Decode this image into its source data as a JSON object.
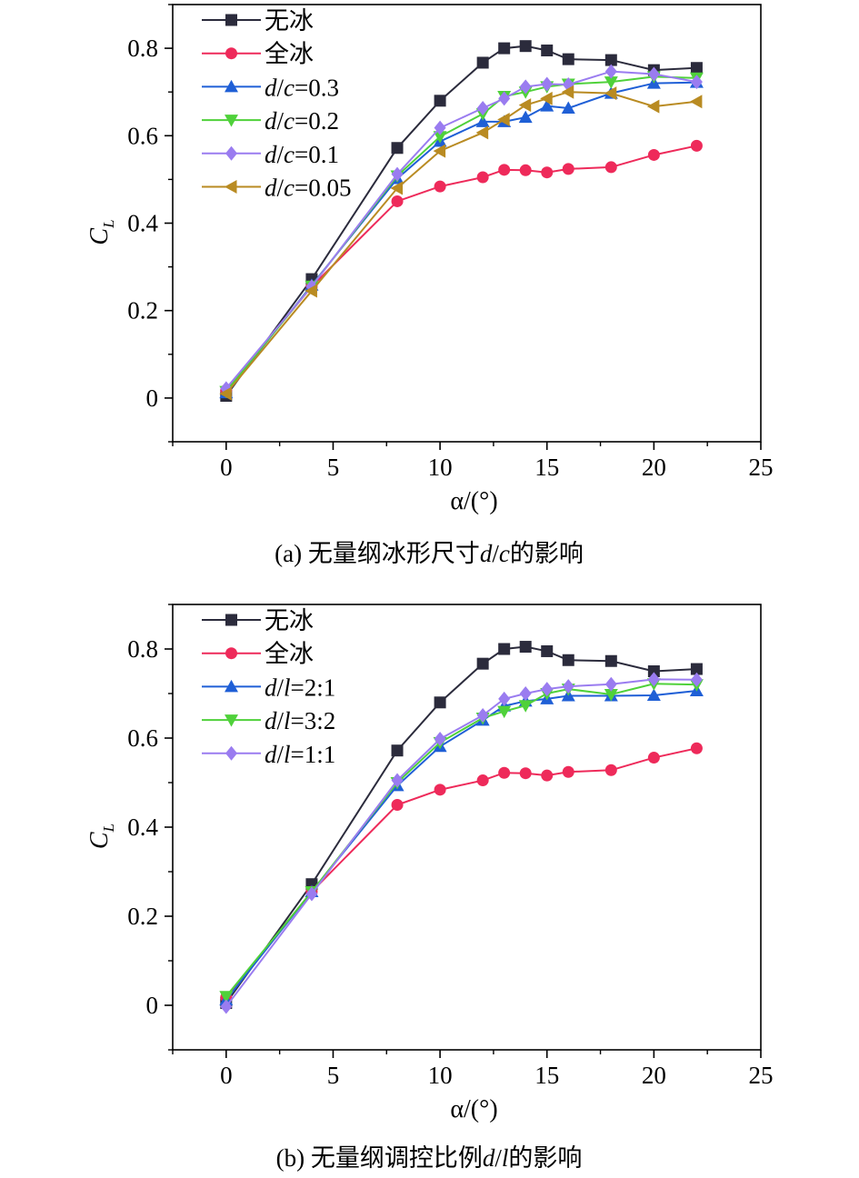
{
  "chart_data": [
    {
      "type": "line",
      "caption": "(a) 无量纲冰形尺寸d/c的影响",
      "xlabel": "α/(°)",
      "ylabel": "C_L",
      "xlim": [
        -2.5,
        25
      ],
      "ylim": [
        -0.1,
        0.9
      ],
      "xticks": [
        0,
        5,
        10,
        15,
        20,
        25
      ],
      "yticks": [
        0,
        0.2,
        0.4,
        0.6,
        0.8
      ],
      "xtick_labels": [
        "0",
        "5",
        "10",
        "15",
        "20",
        "25"
      ],
      "ytick_labels": [
        "0",
        "0.2",
        "0.4",
        "0.6",
        "0.8"
      ],
      "legend_position": "top-left",
      "series": [
        {
          "name": "无冰",
          "color": "#2b2b3c",
          "marker": "square",
          "x": [
            0,
            4,
            8,
            10,
            12,
            13,
            14,
            15,
            16,
            18,
            20,
            22
          ],
          "values": [
            0.005,
            0.272,
            0.572,
            0.68,
            0.767,
            0.8,
            0.805,
            0.795,
            0.775,
            0.773,
            0.75,
            0.755
          ]
        },
        {
          "name": "全冰",
          "color": "#ee2a5a",
          "marker": "circle",
          "x": [
            0,
            4,
            8,
            10,
            12,
            13,
            14,
            15,
            16,
            18,
            20,
            22
          ],
          "values": [
            0.018,
            0.255,
            0.45,
            0.484,
            0.505,
            0.522,
            0.521,
            0.516,
            0.524,
            0.528,
            0.556,
            0.577
          ]
        },
        {
          "name": "d/c=0.3",
          "color": "#1f5fd6",
          "marker": "triangle-up",
          "x": [
            0,
            4,
            8,
            10,
            12,
            13,
            14,
            15,
            16,
            18,
            20,
            22
          ],
          "values": [
            0.012,
            0.258,
            0.502,
            0.587,
            0.632,
            0.632,
            0.642,
            0.668,
            0.663,
            0.697,
            0.72,
            0.722
          ]
        },
        {
          "name": "d/c=0.2",
          "color": "#4fd13a",
          "marker": "triangle-down",
          "x": [
            0,
            4,
            8,
            10,
            12,
            13,
            14,
            15,
            16,
            18,
            20,
            22
          ],
          "values": [
            0.015,
            0.256,
            0.508,
            0.598,
            0.65,
            0.69,
            0.7,
            0.712,
            0.718,
            0.723,
            0.735,
            0.732
          ]
        },
        {
          "name": "d/c=0.1",
          "color": "#9a7cf0",
          "marker": "diamond",
          "x": [
            0,
            4,
            8,
            10,
            12,
            13,
            14,
            15,
            16,
            18,
            20,
            22
          ],
          "values": [
            0.022,
            0.255,
            0.512,
            0.618,
            0.663,
            0.685,
            0.712,
            0.718,
            0.717,
            0.747,
            0.741,
            0.723
          ]
        },
        {
          "name": "d/c=0.05",
          "color": "#b98b22",
          "marker": "triangle-left",
          "x": [
            0,
            4,
            8,
            10,
            12,
            13,
            14,
            15,
            16,
            18,
            20,
            22
          ],
          "values": [
            0.01,
            0.245,
            0.48,
            0.565,
            0.607,
            0.637,
            0.67,
            0.685,
            0.7,
            0.697,
            0.667,
            0.678
          ]
        }
      ]
    },
    {
      "type": "line",
      "caption": "(b) 无量纲调控比例d/l的影响",
      "xlabel": "α/(°)",
      "ylabel": "C_L",
      "xlim": [
        -2.5,
        25
      ],
      "ylim": [
        -0.1,
        0.9
      ],
      "xticks": [
        0,
        5,
        10,
        15,
        20,
        25
      ],
      "yticks": [
        0,
        0.2,
        0.4,
        0.6,
        0.8
      ],
      "xtick_labels": [
        "0",
        "5",
        "10",
        "15",
        "20",
        "25"
      ],
      "ytick_labels": [
        "0",
        "0.2",
        "0.4",
        "0.6",
        "0.8"
      ],
      "legend_position": "top-left",
      "series": [
        {
          "name": "无冰",
          "color": "#2b2b3c",
          "marker": "square",
          "x": [
            0,
            4,
            8,
            10,
            12,
            13,
            14,
            15,
            16,
            18,
            20,
            22
          ],
          "values": [
            0.005,
            0.272,
            0.572,
            0.68,
            0.767,
            0.8,
            0.805,
            0.795,
            0.775,
            0.773,
            0.75,
            0.755
          ]
        },
        {
          "name": "全冰",
          "color": "#ee2a5a",
          "marker": "circle",
          "x": [
            0,
            4,
            8,
            10,
            12,
            13,
            14,
            15,
            16,
            18,
            20,
            22
          ],
          "values": [
            0.018,
            0.255,
            0.45,
            0.484,
            0.505,
            0.522,
            0.521,
            0.516,
            0.524,
            0.528,
            0.556,
            0.577
          ]
        },
        {
          "name": "d/l=2:1",
          "color": "#1f5fd6",
          "marker": "triangle-up",
          "x": [
            0,
            4,
            8,
            10,
            12,
            13,
            14,
            15,
            16,
            18,
            20,
            22
          ],
          "values": [
            0.012,
            0.255,
            0.493,
            0.581,
            0.64,
            0.672,
            0.683,
            0.688,
            0.695,
            0.695,
            0.696,
            0.706
          ]
        },
        {
          "name": "d/l=3:2",
          "color": "#4fd13a",
          "marker": "triangle-down",
          "x": [
            0,
            4,
            8,
            10,
            12,
            13,
            14,
            15,
            16,
            18,
            20,
            22
          ],
          "values": [
            0.02,
            0.255,
            0.5,
            0.59,
            0.645,
            0.66,
            0.673,
            0.7,
            0.71,
            0.698,
            0.722,
            0.72
          ]
        },
        {
          "name": "d/l=1:1",
          "color": "#9a7cf0",
          "marker": "diamond",
          "x": [
            0,
            4,
            8,
            10,
            12,
            13,
            14,
            15,
            16,
            18,
            20,
            22
          ],
          "values": [
            -0.003,
            0.25,
            0.505,
            0.598,
            0.651,
            0.688,
            0.7,
            0.71,
            0.716,
            0.721,
            0.732,
            0.731
          ]
        }
      ]
    }
  ]
}
